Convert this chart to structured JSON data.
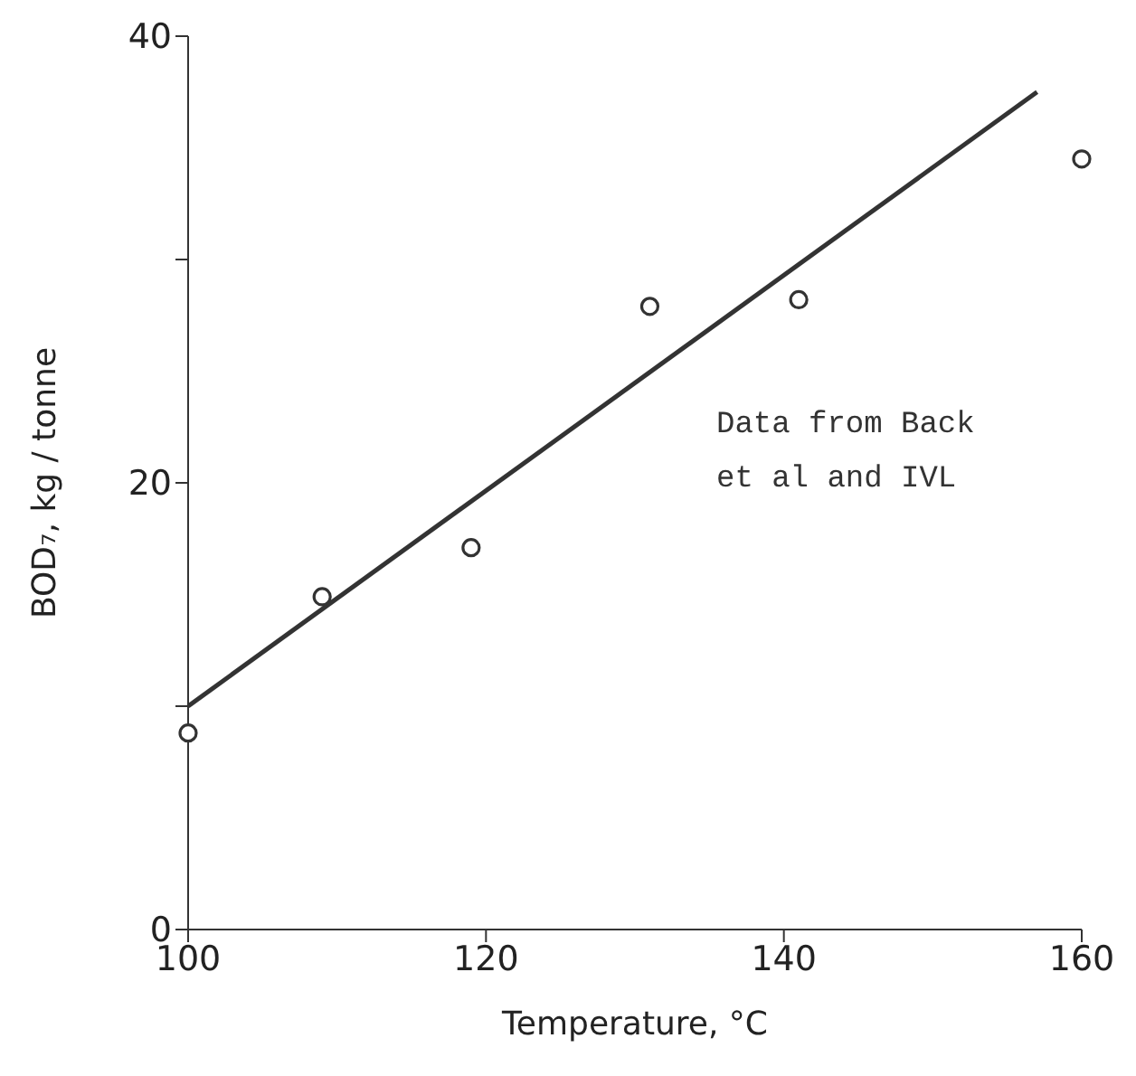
{
  "chart_data": {
    "type": "scatter",
    "xlabel": "Temperature, °C",
    "ylabel": "BOD₇, kg / tonne",
    "annotations": [
      "Data from Back et al and IVL"
    ],
    "xlim": [
      100,
      160
    ],
    "xticks": [
      100,
      120,
      140,
      160
    ],
    "ylim": [
      0,
      40
    ],
    "yticks": [
      0,
      {
        "value": 10,
        "label": null
      },
      20,
      {
        "value": 30,
        "label": null
      },
      40
    ],
    "grid": false,
    "legend": false,
    "series": [
      {
        "marker": "circle",
        "color": "#333333",
        "x": [
          100,
          109,
          119,
          131,
          141,
          160
        ],
        "values": [
          8.8,
          14.9,
          17.1,
          27.9,
          28.2,
          34.5
        ]
      },
      {
        "type": "line",
        "marker": "none",
        "line_style": "solid",
        "color": "#333333",
        "x": [
          100,
          157
        ],
        "values": [
          10,
          37.5
        ]
      }
    ]
  }
}
